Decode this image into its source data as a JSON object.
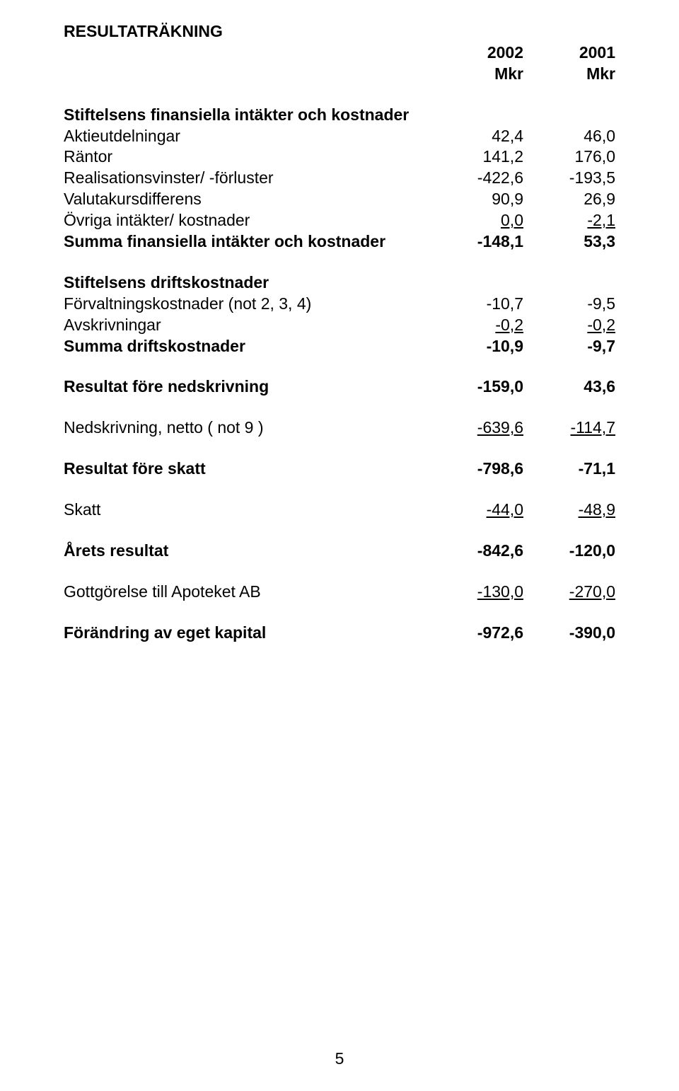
{
  "title": "RESULTATRÄKNING",
  "years": {
    "c1": "2002",
    "c2": "2001"
  },
  "unit": {
    "c1": "Mkr",
    "c2": "Mkr"
  },
  "section1_heading": "Stiftelsens finansiella intäkter och kostnader",
  "rows": {
    "aktie": {
      "label": "Aktieutdelningar",
      "c1": "42,4",
      "c2": "46,0"
    },
    "rantor": {
      "label": "Räntor",
      "c1": "141,2",
      "c2": "176,0"
    },
    "realis": {
      "label": "Realisationsvinster/ -förluster",
      "c1": "-422,6",
      "c2": "-193,5"
    },
    "valuta": {
      "label": "Valutakursdifferens",
      "c1": "90,9",
      "c2": "26,9"
    },
    "ovriga": {
      "label": "Övriga intäkter/ kostnader",
      "c1": "0,0",
      "c2": "-2,1"
    }
  },
  "sum1": {
    "label": "Summa finansiella intäkter och kostnader",
    "c1": "-148,1",
    "c2": "53,3"
  },
  "section2_heading": "Stiftelsens driftskostnader",
  "rows2": {
    "forvalt": {
      "label": "Förvaltningskostnader (not 2, 3, 4)",
      "c1": "-10,7",
      "c2": "-9,5"
    },
    "avskriv": {
      "label": "Avskrivningar",
      "c1": "-0,2",
      "c2": "-0,2"
    }
  },
  "sum2": {
    "label": "Summa driftskostnader",
    "c1": "-10,9",
    "c2": "-9,7"
  },
  "resultat_nedskr": {
    "label": "Resultat före nedskrivning",
    "c1": "-159,0",
    "c2": "43,6"
  },
  "nedskr": {
    "label": "Nedskrivning, netto ( not 9 )",
    "c1": "-639,6",
    "c2": "-114,7"
  },
  "resultat_skatt": {
    "label": "Resultat före skatt",
    "c1": "-798,6",
    "c2": "-71,1"
  },
  "skatt": {
    "label": "Skatt",
    "c1": "-44,0",
    "c2": "-48,9"
  },
  "arets": {
    "label": "Årets resultat",
    "c1": "-842,6",
    "c2": "-120,0"
  },
  "gott": {
    "label": "Gottgörelse till Apoteket AB",
    "c1": "-130,0",
    "c2": "-270,0"
  },
  "forandr": {
    "label": "Förändring av eget kapital",
    "c1": "-972,6",
    "c2": "-390,0"
  },
  "page_number": "5"
}
